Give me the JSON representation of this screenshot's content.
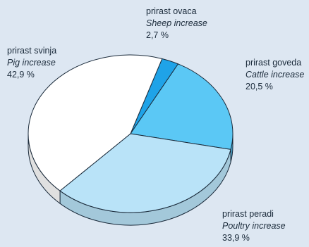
{
  "chart_data": {
    "type": "pie",
    "title": "",
    "slices": [
      {
        "label": "prirast ovaca",
        "label_en": "Sheep increase",
        "value": 2.7,
        "value_text": "2,7 %",
        "color": "#1fa3e8"
      },
      {
        "label": "prirast goveda",
        "label_en": "Cattle increase",
        "value": 20.5,
        "value_text": "20,5 %",
        "color": "#5bc8f5"
      },
      {
        "label": "prirast peradi",
        "label_en": "Poultry increase",
        "value": 33.9,
        "value_text": "33,9 %",
        "color": "#b9e3f8"
      },
      {
        "label": "prirast svinja",
        "label_en": "Pig increase",
        "value": 42.9,
        "value_text": "42,9 %",
        "color": "#ffffff"
      }
    ]
  },
  "colors": {
    "background": "#dde7f2",
    "outline": "#1a2a3a"
  }
}
